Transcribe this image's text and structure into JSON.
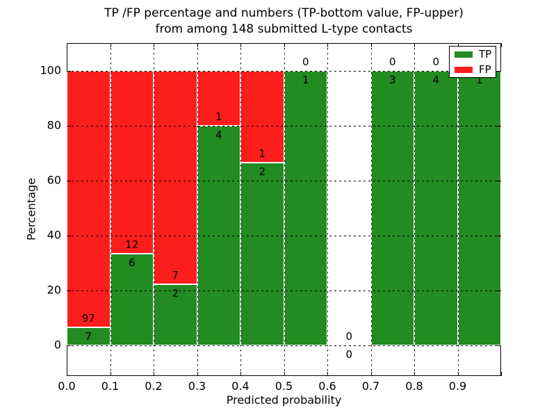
{
  "header": {
    "title_line1": "TP /FP percentage and numbers (TP-bottom value, FP-upper)",
    "title_line2": "from among 148 submitted L-type contacts"
  },
  "colors": {
    "tp_green": "#228b22",
    "fp_red": "#fc1d1d",
    "axes_black": "#000000",
    "background": "#ffffff"
  },
  "chart_data": {
    "type": "bar",
    "subtype": "stacked-percentage-histogram",
    "title_lines": [
      "TP /FP percentage and numbers (TP-bottom value, FP-upper)",
      "from among 148 submitted L-type contacts"
    ],
    "xlabel": "Predicted probability",
    "ylabel": "Percentage",
    "total_submitted_contacts": 148,
    "bin_edges": [
      0.0,
      0.1,
      0.2,
      0.3,
      0.4,
      0.5,
      0.6,
      0.7,
      0.8,
      0.9,
      1.0
    ],
    "series": [
      {
        "name": "TP",
        "color": "#228b22",
        "counts": [
          7,
          6,
          2,
          4,
          2,
          1,
          0,
          3,
          4,
          1
        ]
      },
      {
        "name": "FP",
        "color": "#fc1d1d",
        "counts": [
          97,
          12,
          7,
          1,
          1,
          0,
          0,
          0,
          0,
          0
        ]
      }
    ],
    "bar_value_labels_tp": [
      "7",
      "6",
      "2",
      "4",
      "2",
      "1",
      "0",
      "3",
      "4",
      "1"
    ],
    "bar_value_labels_fp": [
      "97",
      "12",
      "7",
      "1",
      "1",
      "0",
      "0",
      "0",
      "0",
      "0"
    ],
    "tp_percent_per_bin": [
      6.73,
      33.33,
      22.22,
      80.0,
      66.67,
      100.0,
      0.0,
      100.0,
      100.0,
      100.0
    ],
    "x_tick_labels": [
      "0.0",
      "0.1",
      "0.2",
      "0.3",
      "0.4",
      "0.5",
      "0.6",
      "0.7",
      "0.8",
      "0.9"
    ],
    "y_tick_labels": [
      "0",
      "20",
      "40",
      "60",
      "80",
      "100"
    ],
    "y_tick_values": [
      0,
      20,
      40,
      60,
      80,
      100
    ],
    "xlim": [
      0.0,
      1.0
    ],
    "ylim": [
      -11,
      110
    ],
    "grid": true,
    "grid_style": "dotted",
    "legend_position": "upper right"
  }
}
